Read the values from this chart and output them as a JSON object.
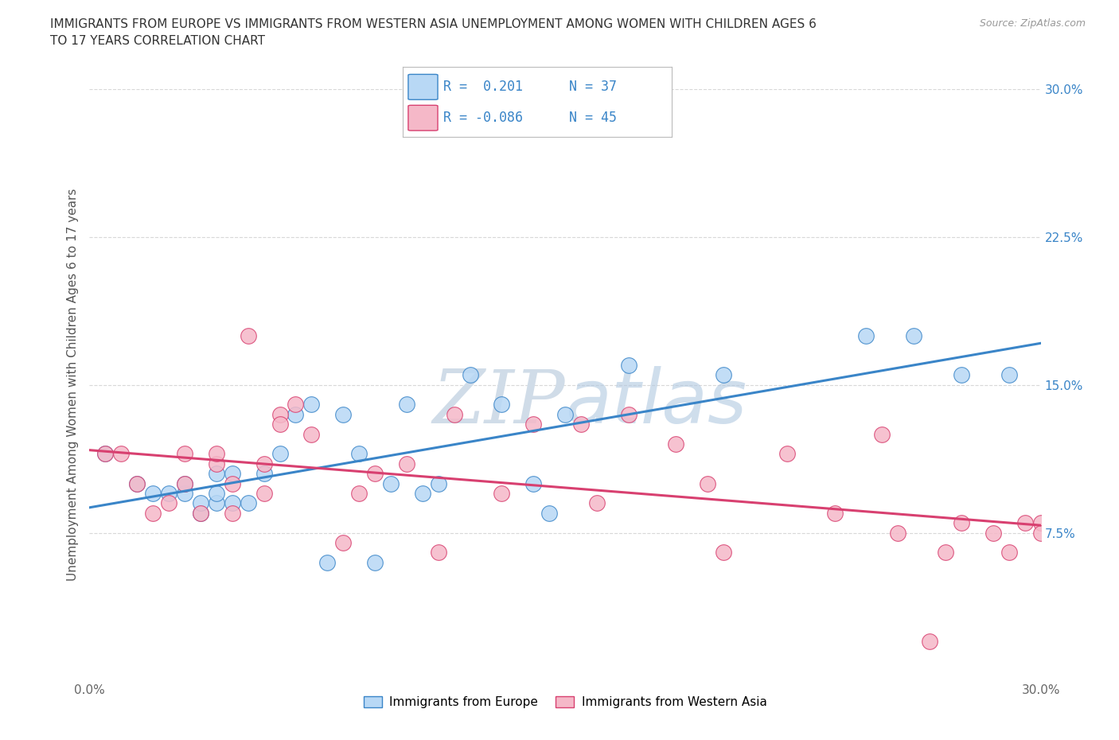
{
  "title": "IMMIGRANTS FROM EUROPE VS IMMIGRANTS FROM WESTERN ASIA UNEMPLOYMENT AMONG WOMEN WITH CHILDREN AGES 6\nTO 17 YEARS CORRELATION CHART",
  "source": "Source: ZipAtlas.com",
  "ylabel": "Unemployment Among Women with Children Ages 6 to 17 years",
  "xlim": [
    0.0,
    0.3
  ],
  "ylim": [
    0.0,
    0.3
  ],
  "xticks": [
    0.0,
    0.05,
    0.1,
    0.15,
    0.2,
    0.25,
    0.3
  ],
  "yticks": [
    0.0,
    0.075,
    0.15,
    0.225,
    0.3
  ],
  "right_ytick_labels": [
    "30.0%",
    "22.5%",
    "15.0%",
    "7.5%",
    ""
  ],
  "xtick_labels": [
    "0.0%",
    "",
    "",
    "",
    "",
    "",
    "30.0%"
  ],
  "legend_r1": "0.201",
  "legend_n1": "37",
  "legend_r2": "-0.086",
  "legend_n2": "45",
  "series1_color": "#b8d8f5",
  "series2_color": "#f5b8c8",
  "line1_color": "#3a85c8",
  "line2_color": "#d84070",
  "background_color": "#ffffff",
  "grid_color": "#d8d8d8",
  "watermark_color": "#d0dce8",
  "series1_x": [
    0.005,
    0.015,
    0.02,
    0.025,
    0.03,
    0.03,
    0.035,
    0.035,
    0.04,
    0.04,
    0.04,
    0.045,
    0.045,
    0.05,
    0.055,
    0.06,
    0.065,
    0.07,
    0.075,
    0.08,
    0.085,
    0.09,
    0.095,
    0.1,
    0.105,
    0.11,
    0.12,
    0.13,
    0.14,
    0.145,
    0.15,
    0.17,
    0.2,
    0.245,
    0.26,
    0.275,
    0.29
  ],
  "series1_y": [
    0.115,
    0.1,
    0.095,
    0.095,
    0.095,
    0.1,
    0.085,
    0.09,
    0.09,
    0.095,
    0.105,
    0.09,
    0.105,
    0.09,
    0.105,
    0.115,
    0.135,
    0.14,
    0.06,
    0.135,
    0.115,
    0.06,
    0.1,
    0.14,
    0.095,
    0.1,
    0.155,
    0.14,
    0.1,
    0.085,
    0.135,
    0.16,
    0.155,
    0.175,
    0.175,
    0.155,
    0.155
  ],
  "series2_x": [
    0.005,
    0.01,
    0.015,
    0.02,
    0.025,
    0.03,
    0.03,
    0.035,
    0.04,
    0.04,
    0.045,
    0.045,
    0.05,
    0.055,
    0.055,
    0.06,
    0.06,
    0.065,
    0.07,
    0.08,
    0.085,
    0.09,
    0.1,
    0.11,
    0.115,
    0.13,
    0.14,
    0.155,
    0.16,
    0.17,
    0.185,
    0.195,
    0.2,
    0.22,
    0.235,
    0.25,
    0.255,
    0.265,
    0.27,
    0.275,
    0.285,
    0.29,
    0.295,
    0.3,
    0.3
  ],
  "series2_y": [
    0.115,
    0.115,
    0.1,
    0.085,
    0.09,
    0.1,
    0.115,
    0.085,
    0.11,
    0.115,
    0.1,
    0.085,
    0.175,
    0.095,
    0.11,
    0.135,
    0.13,
    0.14,
    0.125,
    0.07,
    0.095,
    0.105,
    0.11,
    0.065,
    0.135,
    0.095,
    0.13,
    0.13,
    0.09,
    0.135,
    0.12,
    0.1,
    0.065,
    0.115,
    0.085,
    0.125,
    0.075,
    0.02,
    0.065,
    0.08,
    0.075,
    0.065,
    0.08,
    0.08,
    0.075
  ]
}
